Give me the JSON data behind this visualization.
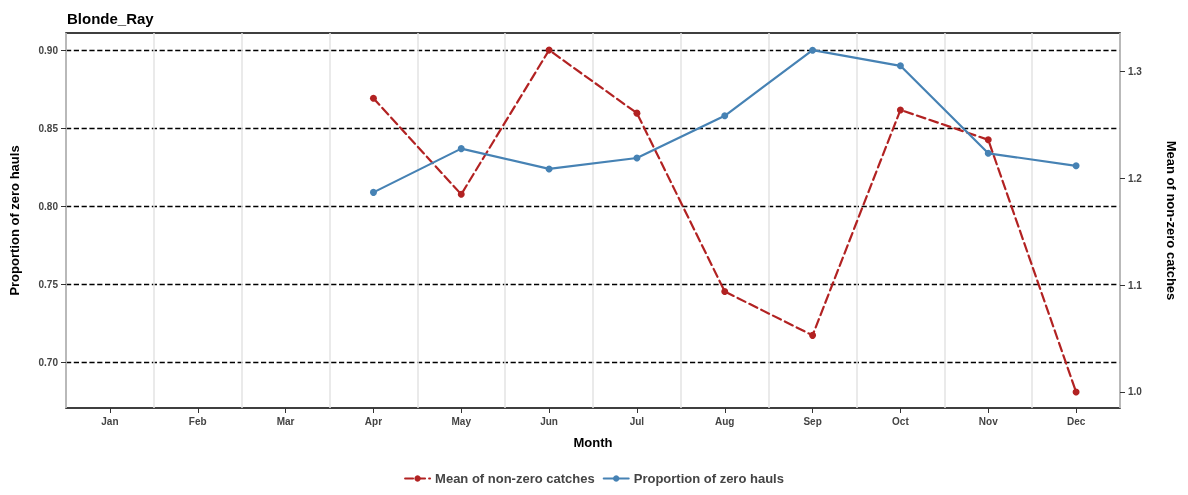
{
  "chart_data": {
    "type": "line",
    "title": "Blonde_Ray",
    "xlabel": "Month",
    "ylabel": "Proportion of zero hauls",
    "y2label": "Mean of non-zero catches",
    "categories": [
      "Jan",
      "Feb",
      "Mar",
      "Apr",
      "May",
      "Jun",
      "Jul",
      "Aug",
      "Sep",
      "Oct",
      "Nov",
      "Dec"
    ],
    "series": [
      {
        "name": "Mean of non-zero catches",
        "color": "#b22222",
        "axis": "y2",
        "line_style": "dashed",
        "values": [
          null,
          null,
          null,
          1.275,
          1.185,
          1.32,
          1.261,
          1.094,
          1.053,
          1.264,
          1.236,
          1.0
        ]
      },
      {
        "name": "Proportion of zero hauls",
        "color": "#4682b4",
        "line_style": "solid",
        "values": [
          null,
          null,
          null,
          0.809,
          0.837,
          0.824,
          0.831,
          0.858,
          0.9,
          0.89,
          0.834,
          0.826
        ]
      }
    ],
    "ylim": [
      0.671,
      0.911
    ],
    "yticks": [
      {
        "value": 0.7,
        "label": "0.70"
      },
      0.75,
      {
        "value": 0.8,
        "label": "0.80"
      },
      0.85,
      {
        "value": 0.9,
        "label": "0.90"
      }
    ],
    "y2lim": [
      0.985,
      1.336
    ],
    "y2ticks": [
      {
        "value": 1,
        "label": "1.0"
      },
      1.1,
      1.2,
      1.3
    ],
    "grid": true,
    "legend": "bottom",
    "marker": "circle"
  }
}
